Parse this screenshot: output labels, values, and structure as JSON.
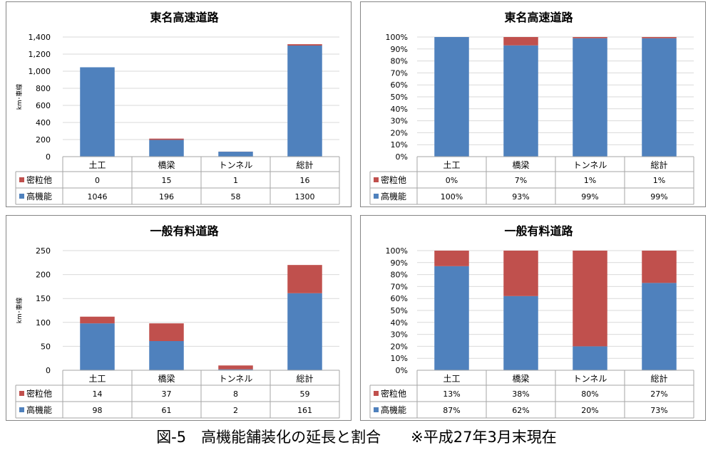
{
  "caption": "図-5　高機能舗装化の延長と割合　　※平成27年3月末現在",
  "colors": {
    "high": "#4F81BD",
    "dense": "#C0504D",
    "grid": "#D9D9D9",
    "border": "#868686"
  },
  "chart_data": [
    {
      "type": "bar",
      "stacked": true,
      "title": "東名高速道路",
      "ylabel": "km･車線",
      "ylim": [
        0,
        1400
      ],
      "yticks": [
        0,
        200,
        400,
        600,
        800,
        1000,
        1200,
        1400
      ],
      "ytick_labels": [
        "0",
        "200",
        "400",
        "600",
        "800",
        "1,000",
        "1,200",
        "1,400"
      ],
      "categories": [
        "土工",
        "橋梁",
        "トンネル",
        "総計"
      ],
      "series": [
        {
          "name": "密粒他",
          "values": [
            0,
            15,
            1,
            16
          ],
          "labels": [
            "0",
            "15",
            "1",
            "16"
          ],
          "color": "#C0504D"
        },
        {
          "name": "高機能",
          "values": [
            1046,
            196,
            58,
            1300
          ],
          "labels": [
            "1046",
            "196",
            "58",
            "1300"
          ],
          "color": "#4F81BD"
        }
      ]
    },
    {
      "type": "bar",
      "stacked": true,
      "percent": true,
      "title": "東名高速道路",
      "ylim": [
        0,
        100
      ],
      "yticks": [
        0,
        10,
        20,
        30,
        40,
        50,
        60,
        70,
        80,
        90,
        100
      ],
      "ytick_labels": [
        "0%",
        "10%",
        "20%",
        "30%",
        "40%",
        "50%",
        "60%",
        "70%",
        "80%",
        "90%",
        "100%"
      ],
      "categories": [
        "土工",
        "橋梁",
        "トンネル",
        "総計"
      ],
      "series": [
        {
          "name": "密粒他",
          "values": [
            0,
            7,
            1,
            1
          ],
          "labels": [
            "0%",
            "7%",
            "1%",
            "1%"
          ],
          "color": "#C0504D"
        },
        {
          "name": "高機能",
          "values": [
            100,
            93,
            99,
            99
          ],
          "labels": [
            "100%",
            "93%",
            "99%",
            "99%"
          ],
          "color": "#4F81BD"
        }
      ]
    },
    {
      "type": "bar",
      "stacked": true,
      "title": "一般有料道路",
      "ylabel": "km･車線",
      "ylim": [
        0,
        250
      ],
      "yticks": [
        0,
        50,
        100,
        150,
        200,
        250
      ],
      "ytick_labels": [
        "0",
        "50",
        "100",
        "150",
        "200",
        "250"
      ],
      "categories": [
        "土工",
        "橋梁",
        "トンネル",
        "総計"
      ],
      "series": [
        {
          "name": "密粒他",
          "values": [
            14,
            37,
            8,
            59
          ],
          "labels": [
            "14",
            "37",
            "8",
            "59"
          ],
          "color": "#C0504D"
        },
        {
          "name": "高機能",
          "values": [
            98,
            61,
            2,
            161
          ],
          "labels": [
            "98",
            "61",
            "2",
            "161"
          ],
          "color": "#4F81BD"
        }
      ]
    },
    {
      "type": "bar",
      "stacked": true,
      "percent": true,
      "title": "一般有料道路",
      "ylim": [
        0,
        100
      ],
      "yticks": [
        0,
        10,
        20,
        30,
        40,
        50,
        60,
        70,
        80,
        90,
        100
      ],
      "ytick_labels": [
        "0%",
        "10%",
        "20%",
        "30%",
        "40%",
        "50%",
        "60%",
        "70%",
        "80%",
        "90%",
        "100%"
      ],
      "categories": [
        "土工",
        "橋梁",
        "トンネル",
        "総計"
      ],
      "series": [
        {
          "name": "密粒他",
          "values": [
            13,
            38,
            80,
            27
          ],
          "labels": [
            "13%",
            "38%",
            "80%",
            "27%"
          ],
          "color": "#C0504D"
        },
        {
          "name": "高機能",
          "values": [
            87,
            62,
            20,
            73
          ],
          "labels": [
            "87%",
            "62%",
            "20%",
            "73%"
          ],
          "color": "#4F81BD"
        }
      ]
    }
  ]
}
